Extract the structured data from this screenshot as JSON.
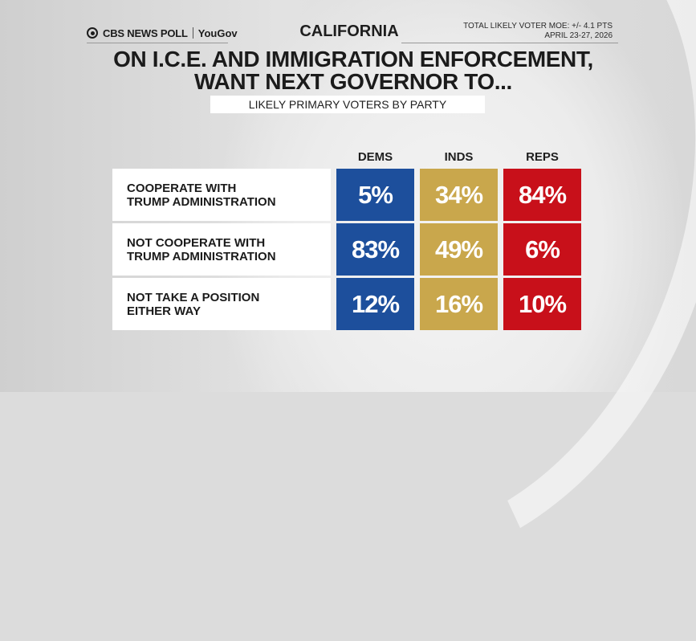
{
  "brand": {
    "name": "CBS NEWS POLL",
    "partner": "YouGov"
  },
  "state": "CALIFORNIA",
  "moe": [
    "TOTAL LIKELY VOTER MOE: +/- 4.1 PTS",
    "APRIL 23-27, 2026"
  ],
  "headline": [
    "ON I.C.E. AND IMMIGRATION ENFORCEMENT,",
    "WANT NEXT GOVERNOR TO..."
  ],
  "subtitle": "LIKELY PRIMARY VOTERS BY PARTY",
  "colors": {
    "dem": "#1d4f9c",
    "ind": "#c9a74c",
    "rep": "#c8101a"
  },
  "chart_data": {
    "type": "table",
    "title": "ON I.C.E. AND IMMIGRATION ENFORCEMENT, WANT NEXT GOVERNOR TO...",
    "subtitle": "LIKELY PRIMARY VOTERS BY PARTY",
    "columns": [
      "DEMS",
      "INDS",
      "REPS"
    ],
    "rows": [
      {
        "label": "COOPERATE WITH\nTRUMP ADMINISTRATION",
        "values": [
          "5%",
          "34%",
          "84%"
        ]
      },
      {
        "label": "NOT COOPERATE WITH\nTRUMP ADMINISTRATION",
        "values": [
          "83%",
          "49%",
          "6%"
        ]
      },
      {
        "label": "NOT TAKE A POSITION\nEITHER WAY",
        "values": [
          "12%",
          "16%",
          "10%"
        ]
      }
    ]
  }
}
